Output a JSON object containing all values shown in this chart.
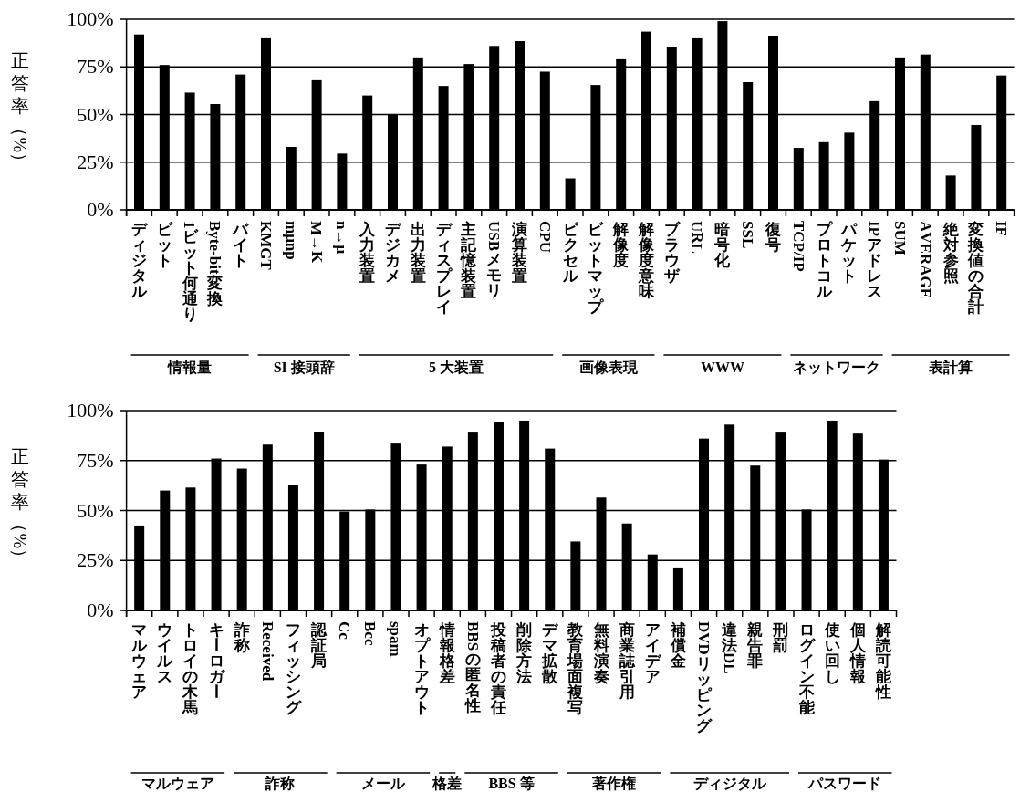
{
  "chart_data": [
    {
      "type": "bar",
      "ylabel": "正答率（%）",
      "color": "#000000",
      "grid": "y",
      "ylim": [
        0,
        100
      ],
      "yticks": [
        {
          "value": 0,
          "label": "0%"
        },
        {
          "value": 25,
          "label": "25%"
        },
        {
          "value": 50,
          "label": "50%"
        },
        {
          "value": 75,
          "label": "75%"
        },
        {
          "value": 100,
          "label": "100%"
        }
      ],
      "categories": [
        "ディジタル",
        "ビット",
        "1ビット何通り",
        "Byte-bit変換",
        "バイト",
        "KMGT",
        "mμnp",
        "M→K",
        "n→μ",
        "入力装置",
        "デジカメ",
        "出力装置",
        "ディスプレイ",
        "主記憶装置",
        "USBメモリ",
        "演算装置",
        "CPU",
        "ピクセル",
        "ビットマップ",
        "解像度",
        "解像度意味",
        "ブラウザ",
        "URL",
        "暗号化",
        "SSL",
        "復号",
        "TCP/IP",
        "プロトコル",
        "パケット",
        "IPアドレス",
        "SUM",
        "AVERAGE",
        "絶対参照",
        "変換値の合計",
        "IF"
      ],
      "values": [
        92,
        76,
        61.5,
        55.5,
        71,
        90,
        33,
        68,
        29.5,
        60,
        50,
        79.5,
        65,
        76.5,
        86,
        88.5,
        72.5,
        16.5,
        65.5,
        79,
        93.5,
        85.5,
        90,
        99,
        67,
        91,
        32.5,
        35.5,
        40.5,
        57,
        79.5,
        81.5,
        18,
        44.5,
        70.5
      ],
      "annotations": [
        "情報量",
        "SI 接頭辞",
        "5 大装置",
        "画像表現",
        "WWW",
        "ネットワーク",
        "表計算"
      ]
    },
    {
      "type": "bar",
      "ylabel": "正答率（%）",
      "color": "#000000",
      "grid": "y",
      "ylim": [
        0,
        100
      ],
      "yticks": [
        {
          "value": 0,
          "label": "0%"
        },
        {
          "value": 25,
          "label": "25%"
        },
        {
          "value": 50,
          "label": "50%"
        },
        {
          "value": 75,
          "label": "75%"
        },
        {
          "value": 100,
          "label": "100%"
        }
      ],
      "categories": [
        "マルウェア",
        "ウイルス",
        "トロイの木馬",
        "キーロガー",
        "詐称",
        "Received",
        "フィッシング",
        "認証局",
        "Cc",
        "Bcc",
        "spam",
        "オプトアウト",
        "情報格差",
        "BBSの匿名性",
        "投稿者の責任",
        "削除方法",
        "デマ拡散",
        "教育場面複写",
        "無料演奏",
        "商業誌引用",
        "アイデア",
        "補償金",
        "DVDリッピング",
        "違法DL",
        "親告罪",
        "刑罰",
        "ログイン不能",
        "使い回し",
        "個人情報",
        "解読可能性"
      ],
      "values": [
        42.5,
        60,
        61.5,
        76,
        71,
        83,
        63,
        89.5,
        49.5,
        50.5,
        83.5,
        73,
        82,
        89,
        94.5,
        95,
        81,
        34.5,
        56.5,
        43.5,
        28,
        21.5,
        86,
        93,
        72.5,
        89,
        50.5,
        95,
        88.5,
        75.5
      ],
      "annotations": [
        "マルウェア",
        "詐称",
        "メール",
        "格差",
        "BBS 等",
        "著作権",
        "ディジタル",
        "パスワード"
      ]
    }
  ]
}
